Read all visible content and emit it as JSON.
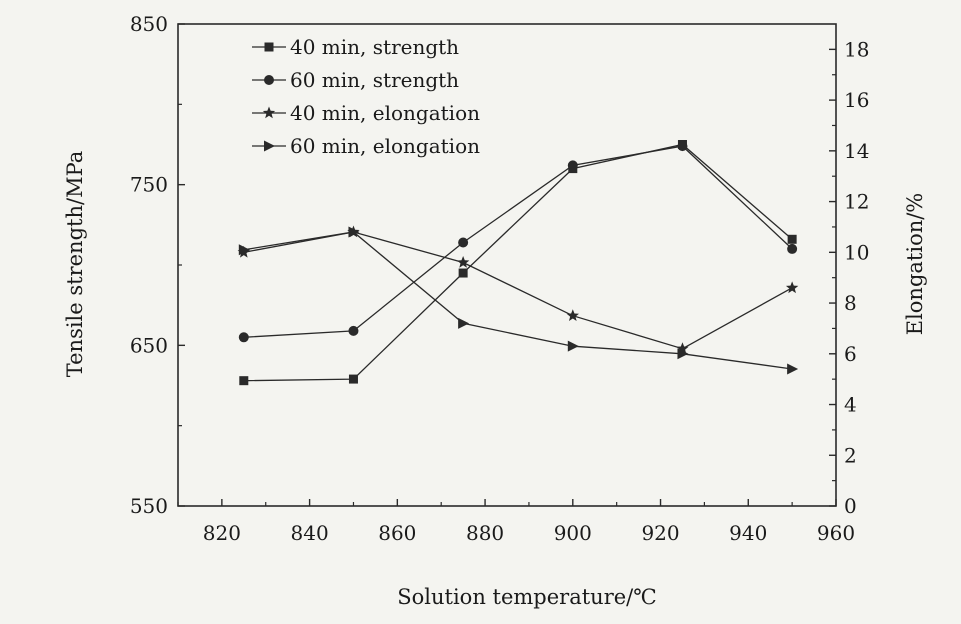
{
  "chart_data": {
    "type": "line",
    "xlabel": "Solution temperature/℃",
    "ylabel_left": "Tensile strength/MPa",
    "ylabel_right": "Elongation/%",
    "xlim": [
      810,
      960
    ],
    "xticks": [
      820,
      840,
      860,
      880,
      900,
      920,
      940,
      960
    ],
    "ylim_left": [
      550,
      850
    ],
    "yticks_left": [
      550,
      650,
      750,
      850
    ],
    "ylim_right": [
      0,
      19
    ],
    "yticks_right": [
      0,
      2,
      4,
      6,
      8,
      10,
      12,
      14,
      16,
      18
    ],
    "legend_position": "top-left",
    "grid": false,
    "series": [
      {
        "name": "40 min, strength",
        "axis": "left",
        "marker": "square",
        "x": [
          825,
          850,
          875,
          900,
          925,
          950
        ],
        "y": [
          628,
          629,
          695,
          760,
          775,
          716
        ]
      },
      {
        "name": "60 min, strength",
        "axis": "left",
        "marker": "circle",
        "x": [
          825,
          850,
          875,
          900,
          925,
          950
        ],
        "y": [
          655,
          659,
          714,
          762,
          774,
          710
        ]
      },
      {
        "name": "40 min, elongation",
        "axis": "right",
        "marker": "star",
        "x": [
          825,
          850,
          875,
          900,
          925,
          950
        ],
        "y": [
          10.0,
          10.8,
          9.6,
          7.5,
          6.2,
          8.6
        ]
      },
      {
        "name": "60 min, elongation",
        "axis": "right",
        "marker": "triangle-right",
        "x": [
          825,
          850,
          875,
          900,
          925,
          950
        ],
        "y": [
          10.1,
          10.8,
          7.2,
          6.3,
          6.0,
          5.4
        ]
      }
    ]
  }
}
